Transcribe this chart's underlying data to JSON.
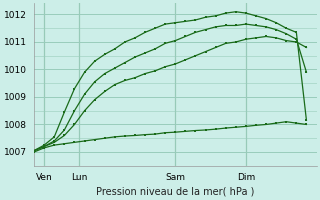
{
  "background_color": "#cceee8",
  "plot_bg_color": "#cceee8",
  "grid_color": "#99ccbb",
  "line_color": "#1a6b1a",
  "title": "Pression niveau de la mer( hPa )",
  "ylabel_ticks": [
    1007,
    1008,
    1009,
    1010,
    1011,
    1012
  ],
  "xlim": [
    0,
    28
  ],
  "ylim": [
    1006.5,
    1012.4
  ],
  "xtick_positions": [
    1,
    4.5,
    14,
    21
  ],
  "xtick_labels": [
    "Ven",
    "Lun",
    "Sam",
    "Dim"
  ],
  "vlines": [
    1,
    4.5,
    14,
    21
  ],
  "series": [
    {
      "x": [
        0,
        1,
        2,
        3,
        4,
        5,
        6,
        7,
        8,
        9,
        10,
        11,
        12,
        13,
        14,
        15,
        16,
        17,
        18,
        19,
        20,
        21,
        22,
        23,
        24,
        25,
        26,
        27
      ],
      "y": [
        1007.0,
        1007.15,
        1007.25,
        1007.3,
        1007.35,
        1007.4,
        1007.45,
        1007.5,
        1007.55,
        1007.58,
        1007.6,
        1007.63,
        1007.65,
        1007.7,
        1007.72,
        1007.75,
        1007.78,
        1007.8,
        1007.83,
        1007.87,
        1007.9,
        1007.93,
        1007.97,
        1008.0,
        1008.05,
        1008.1,
        1008.05,
        1008.0
      ]
    },
    {
      "x": [
        0,
        1,
        2,
        3,
        4,
        5,
        6,
        7,
        8,
        9,
        10,
        11,
        12,
        13,
        14,
        15,
        16,
        17,
        18,
        19,
        20,
        21,
        22,
        23,
        24,
        25,
        26,
        27
      ],
      "y": [
        1007.05,
        1007.2,
        1007.35,
        1007.6,
        1008.0,
        1008.5,
        1008.9,
        1009.2,
        1009.45,
        1009.6,
        1009.7,
        1009.85,
        1009.95,
        1010.1,
        1010.2,
        1010.35,
        1010.5,
        1010.65,
        1010.8,
        1010.95,
        1011.0,
        1011.1,
        1011.15,
        1011.2,
        1011.15,
        1011.05,
        1011.0,
        1010.8
      ]
    },
    {
      "x": [
        0,
        1,
        2,
        3,
        4,
        5,
        6,
        7,
        8,
        9,
        10,
        11,
        12,
        13,
        14,
        15,
        16,
        17,
        18,
        19,
        20,
        21,
        22,
        23,
        24,
        25,
        26,
        27
      ],
      "y": [
        1007.05,
        1007.2,
        1007.4,
        1007.8,
        1008.5,
        1009.1,
        1009.55,
        1009.85,
        1010.05,
        1010.25,
        1010.45,
        1010.6,
        1010.75,
        1010.95,
        1011.05,
        1011.2,
        1011.35,
        1011.45,
        1011.55,
        1011.6,
        1011.6,
        1011.65,
        1011.6,
        1011.55,
        1011.45,
        1011.3,
        1011.1,
        1009.9
      ]
    },
    {
      "x": [
        0,
        1,
        2,
        3,
        4,
        5,
        6,
        7,
        8,
        9,
        10,
        11,
        12,
        13,
        14,
        15,
        16,
        17,
        18,
        19,
        20,
        21,
        22,
        23,
        24,
        25,
        26,
        27
      ],
      "y": [
        1007.05,
        1007.25,
        1007.55,
        1008.45,
        1009.3,
        1009.9,
        1010.3,
        1010.55,
        1010.75,
        1011.0,
        1011.15,
        1011.35,
        1011.5,
        1011.65,
        1011.7,
        1011.75,
        1011.8,
        1011.9,
        1011.95,
        1012.05,
        1012.1,
        1012.05,
        1011.95,
        1011.85,
        1011.7,
        1011.5,
        1011.35,
        1008.15
      ]
    }
  ]
}
